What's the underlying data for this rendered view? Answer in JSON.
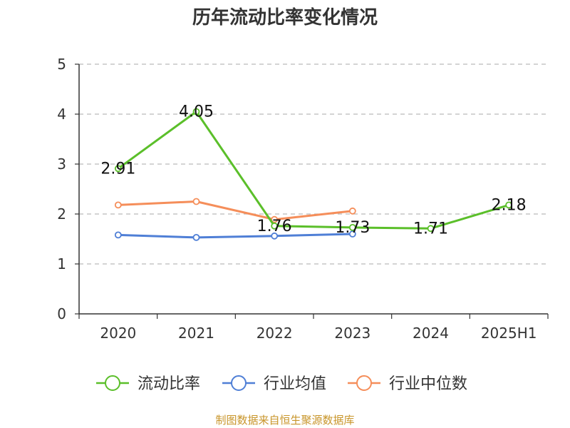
{
  "title": "历年流动比率变化情况",
  "source": "制图数据来自恒生聚源数据库",
  "colors": {
    "current_ratio": "#5bbf2a",
    "industry_avg": "#4f7fd6",
    "industry_median": "#f58e5a",
    "grid": "#bbbbbb",
    "axis": "#333333",
    "text": "#333333"
  },
  "chart_data": {
    "type": "line",
    "title": "历年流动比率变化情况",
    "xlabel": "",
    "ylabel": "",
    "categories": [
      "2020",
      "2021",
      "2022",
      "2023",
      "2024",
      "2025H1"
    ],
    "ylim": [
      0,
      5
    ],
    "yticks": [
      0,
      1,
      2,
      3,
      4,
      5
    ],
    "grid": true,
    "legend_position": "bottom",
    "series": [
      {
        "name": "流动比率",
        "color": "#5bbf2a",
        "values": [
          2.91,
          4.05,
          1.76,
          1.73,
          1.71,
          2.18
        ],
        "labels": [
          "2.91",
          "4.05",
          "1.76",
          "1.73",
          "1.71",
          "2.18"
        ]
      },
      {
        "name": "行业均值",
        "color": "#4f7fd6",
        "values": [
          1.58,
          1.53,
          1.56,
          1.6,
          null,
          null
        ]
      },
      {
        "name": "行业中位数",
        "color": "#f58e5a",
        "values": [
          2.18,
          2.25,
          1.89,
          2.06,
          null,
          null
        ]
      }
    ]
  }
}
